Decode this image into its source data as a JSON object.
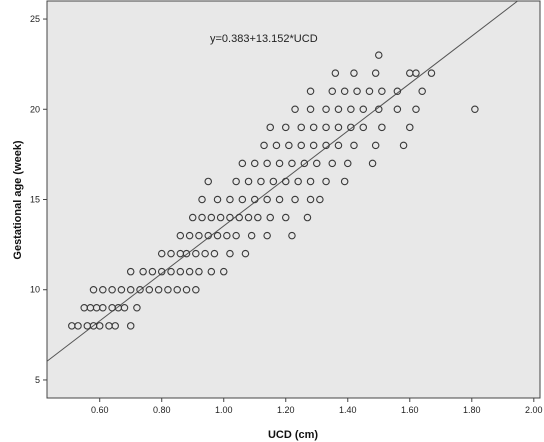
{
  "chart_data": {
    "type": "scatter",
    "xlabel": "UCD (cm)",
    "ylabel": "Gestational age (week)",
    "xlim": [
      0.43,
      2.02
    ],
    "ylim": [
      4,
      26
    ],
    "x_ticks": [
      "0.60",
      "0.80",
      "1.00",
      "1.20",
      "1.40",
      "1.60",
      "1.80",
      "2.00"
    ],
    "y_ticks": [
      "5",
      "10",
      "15",
      "20",
      "25"
    ],
    "grid": false,
    "background": "#e8e8e8",
    "marker_color": "#3a3a3a",
    "line_color": "#555555",
    "annotation": "y=0.383+13.152*UCD",
    "fit_line": {
      "intercept": 0.383,
      "slope": 13.152
    },
    "series": [
      {
        "points": [
          [
            0.51,
            8
          ],
          [
            0.53,
            8
          ],
          [
            0.56,
            8
          ],
          [
            0.58,
            8
          ],
          [
            0.6,
            8
          ],
          [
            0.63,
            8
          ],
          [
            0.65,
            8
          ],
          [
            0.7,
            8
          ],
          [
            0.55,
            9
          ],
          [
            0.57,
            9
          ],
          [
            0.59,
            9
          ],
          [
            0.61,
            9
          ],
          [
            0.64,
            9
          ],
          [
            0.66,
            9
          ],
          [
            0.68,
            9
          ],
          [
            0.72,
            9
          ],
          [
            0.58,
            10
          ],
          [
            0.61,
            10
          ],
          [
            0.64,
            10
          ],
          [
            0.67,
            10
          ],
          [
            0.7,
            10
          ],
          [
            0.73,
            10
          ],
          [
            0.76,
            10
          ],
          [
            0.79,
            10
          ],
          [
            0.82,
            10
          ],
          [
            0.85,
            10
          ],
          [
            0.88,
            10
          ],
          [
            0.91,
            10
          ],
          [
            0.7,
            11
          ],
          [
            0.74,
            11
          ],
          [
            0.77,
            11
          ],
          [
            0.8,
            11
          ],
          [
            0.83,
            11
          ],
          [
            0.86,
            11
          ],
          [
            0.89,
            11
          ],
          [
            0.92,
            11
          ],
          [
            0.96,
            11
          ],
          [
            1.0,
            11
          ],
          [
            0.8,
            12
          ],
          [
            0.83,
            12
          ],
          [
            0.86,
            12
          ],
          [
            0.88,
            12
          ],
          [
            0.91,
            12
          ],
          [
            0.94,
            12
          ],
          [
            0.97,
            12
          ],
          [
            1.02,
            12
          ],
          [
            1.07,
            12
          ],
          [
            0.86,
            13
          ],
          [
            0.89,
            13
          ],
          [
            0.92,
            13
          ],
          [
            0.95,
            13
          ],
          [
            0.98,
            13
          ],
          [
            1.01,
            13
          ],
          [
            1.04,
            13
          ],
          [
            1.09,
            13
          ],
          [
            1.14,
            13
          ],
          [
            1.22,
            13
          ],
          [
            0.9,
            14
          ],
          [
            0.93,
            14
          ],
          [
            0.96,
            14
          ],
          [
            0.99,
            14
          ],
          [
            1.02,
            14
          ],
          [
            1.05,
            14
          ],
          [
            1.08,
            14
          ],
          [
            1.11,
            14
          ],
          [
            1.15,
            14
          ],
          [
            1.2,
            14
          ],
          [
            1.27,
            14
          ],
          [
            0.93,
            15
          ],
          [
            0.98,
            15
          ],
          [
            1.02,
            15
          ],
          [
            1.06,
            15
          ],
          [
            1.1,
            15
          ],
          [
            1.14,
            15
          ],
          [
            1.18,
            15
          ],
          [
            1.23,
            15
          ],
          [
            1.28,
            15
          ],
          [
            1.31,
            15
          ],
          [
            0.95,
            16
          ],
          [
            1.04,
            16
          ],
          [
            1.08,
            16
          ],
          [
            1.12,
            16
          ],
          [
            1.16,
            16
          ],
          [
            1.2,
            16
          ],
          [
            1.24,
            16
          ],
          [
            1.28,
            16
          ],
          [
            1.33,
            16
          ],
          [
            1.39,
            16
          ],
          [
            1.06,
            17
          ],
          [
            1.1,
            17
          ],
          [
            1.14,
            17
          ],
          [
            1.18,
            17
          ],
          [
            1.22,
            17
          ],
          [
            1.26,
            17
          ],
          [
            1.3,
            17
          ],
          [
            1.35,
            17
          ],
          [
            1.4,
            17
          ],
          [
            1.48,
            17
          ],
          [
            1.13,
            18
          ],
          [
            1.17,
            18
          ],
          [
            1.21,
            18
          ],
          [
            1.25,
            18
          ],
          [
            1.29,
            18
          ],
          [
            1.33,
            18
          ],
          [
            1.37,
            18
          ],
          [
            1.42,
            18
          ],
          [
            1.49,
            18
          ],
          [
            1.58,
            18
          ],
          [
            1.15,
            19
          ],
          [
            1.2,
            19
          ],
          [
            1.25,
            19
          ],
          [
            1.29,
            19
          ],
          [
            1.33,
            19
          ],
          [
            1.37,
            19
          ],
          [
            1.41,
            19
          ],
          [
            1.45,
            19
          ],
          [
            1.51,
            19
          ],
          [
            1.6,
            19
          ],
          [
            1.23,
            20
          ],
          [
            1.28,
            20
          ],
          [
            1.33,
            20
          ],
          [
            1.37,
            20
          ],
          [
            1.41,
            20
          ],
          [
            1.45,
            20
          ],
          [
            1.5,
            20
          ],
          [
            1.56,
            20
          ],
          [
            1.62,
            20
          ],
          [
            1.81,
            20
          ],
          [
            1.28,
            21
          ],
          [
            1.35,
            21
          ],
          [
            1.39,
            21
          ],
          [
            1.43,
            21
          ],
          [
            1.47,
            21
          ],
          [
            1.51,
            21
          ],
          [
            1.56,
            21
          ],
          [
            1.64,
            21
          ],
          [
            1.36,
            22
          ],
          [
            1.42,
            22
          ],
          [
            1.49,
            22
          ],
          [
            1.6,
            22
          ],
          [
            1.62,
            22
          ],
          [
            1.67,
            22
          ],
          [
            1.5,
            23
          ]
        ]
      }
    ]
  }
}
